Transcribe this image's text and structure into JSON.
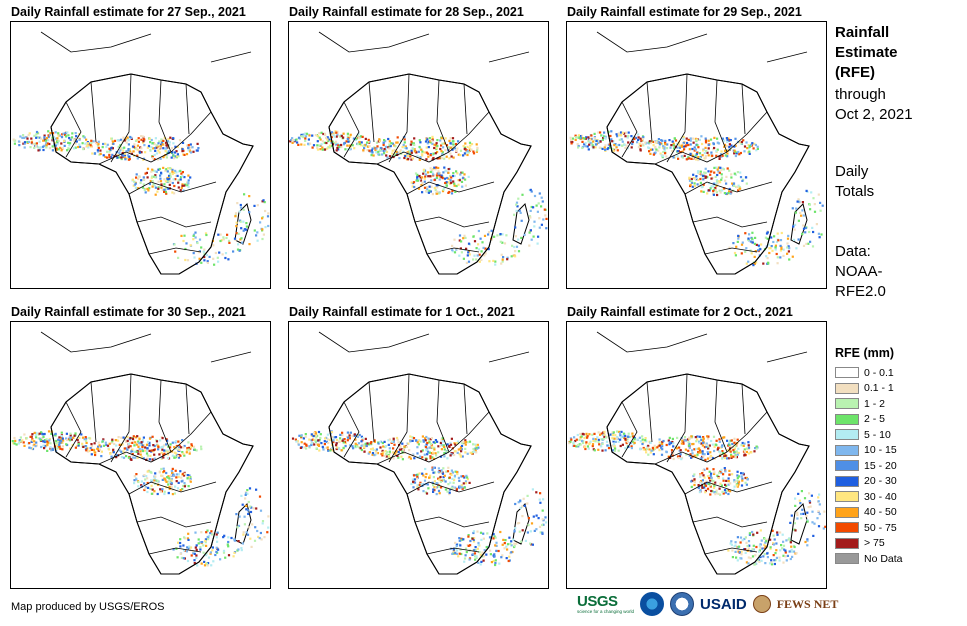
{
  "panels": [
    {
      "title": "Daily Rainfall estimate for 27 Sep., 2021"
    },
    {
      "title": "Daily Rainfall estimate for 28 Sep., 2021"
    },
    {
      "title": "Daily Rainfall estimate for 29 Sep., 2021"
    },
    {
      "title": "Daily Rainfall estimate for 30 Sep., 2021"
    },
    {
      "title": "Daily Rainfall estimate for 1 Oct., 2021"
    },
    {
      "title": "Daily Rainfall estimate for 2 Oct., 2021"
    }
  ],
  "side": {
    "title_lines": [
      "Rainfall",
      "Estimate",
      "(RFE)"
    ],
    "through": "through",
    "date": "Oct 2, 2021",
    "daily_lines": [
      "Daily",
      "Totals"
    ],
    "data_lines": [
      "Data:",
      "NOAA-",
      "RFE2.0"
    ]
  },
  "legend": {
    "title": "RFE (mm)",
    "items": [
      {
        "label": "0 - 0.1",
        "color": "#ffffff"
      },
      {
        "label": "0.1 - 1",
        "color": "#f2dfc0"
      },
      {
        "label": "1 - 2",
        "color": "#b9f2b1"
      },
      {
        "label": "2 - 5",
        "color": "#6de46a"
      },
      {
        "label": "5 - 10",
        "color": "#b3ecf2"
      },
      {
        "label": "10 - 15",
        "color": "#7fb7ee"
      },
      {
        "label": "15 - 20",
        "color": "#4f8fe6"
      },
      {
        "label": "20 - 30",
        "color": "#1f5fe0"
      },
      {
        "label": "30 - 40",
        "color": "#ffe680"
      },
      {
        "label": "40 - 50",
        "color": "#ffa31a"
      },
      {
        "label": "50 - 75",
        "color": "#f24a00"
      },
      {
        "label": "> 75",
        "color": "#a31b1b"
      },
      {
        "label": "No Data",
        "color": "#999999"
      }
    ]
  },
  "footer": {
    "credit": "Map produced by USGS/EROS"
  },
  "logos": {
    "usgs": "USGS",
    "usgs_tagline": "science for a changing world",
    "noaa": "noaa-logo",
    "doi": "doi-logo",
    "usaid": "USAID",
    "fewsnet": "FEWS NET"
  }
}
